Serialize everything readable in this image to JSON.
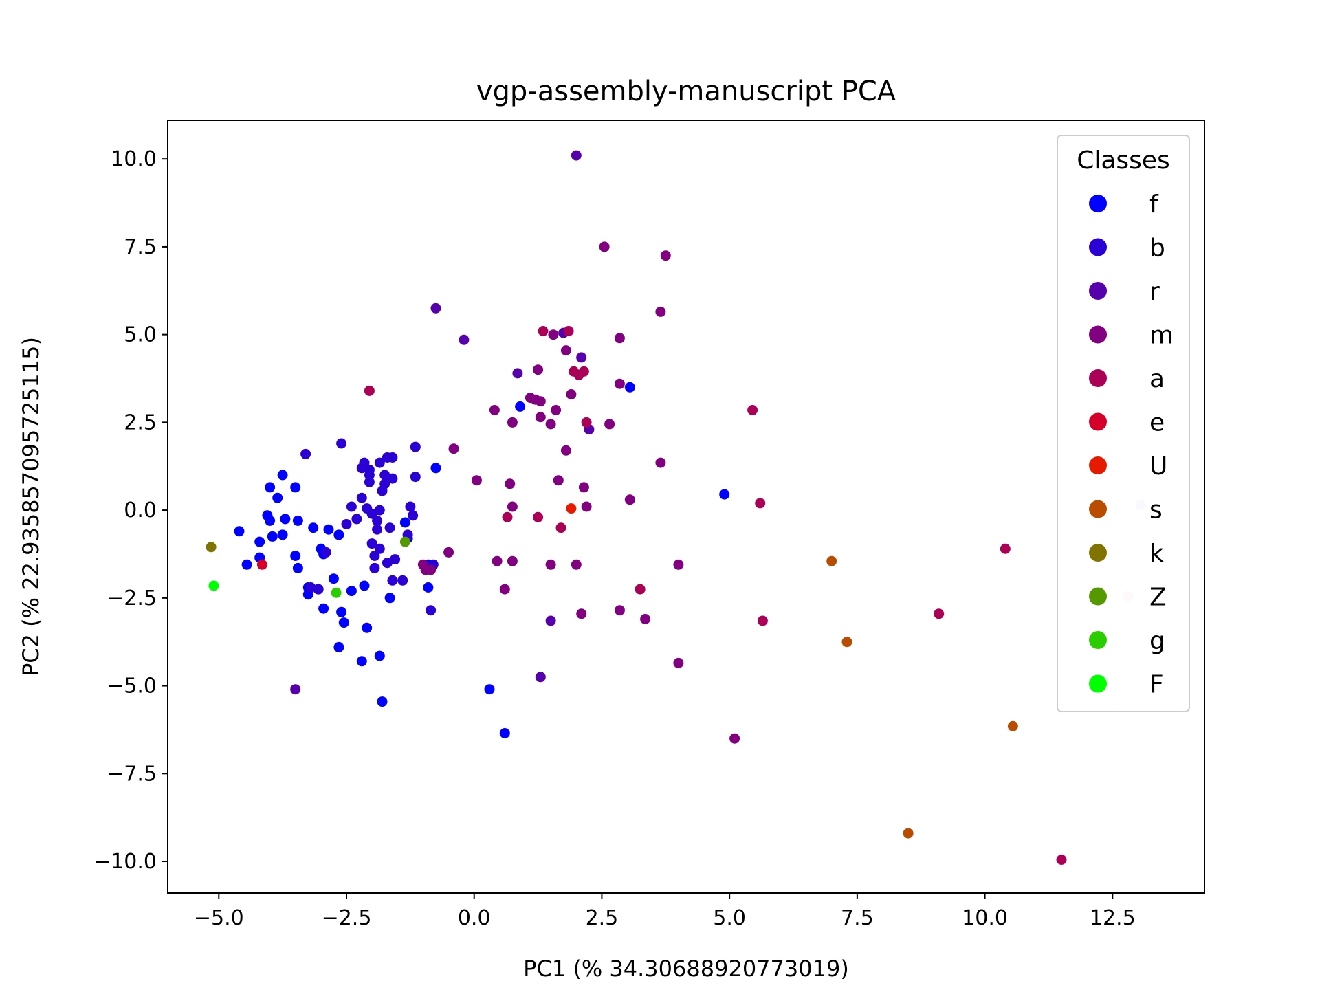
{
  "chart_data": {
    "type": "scatter",
    "title": "vgp-assembly-manuscript PCA",
    "xlabel": "PC1 (% 34.30688920773019)",
    "ylabel": "PC2 (% 22.935857095725115)",
    "xlim": [
      -6.0,
      14.3
    ],
    "ylim": [
      -10.9,
      11.1
    ],
    "xticks": [
      -5.0,
      -2.5,
      0.0,
      2.5,
      5.0,
      7.5,
      10.0,
      12.5
    ],
    "xtick_labels": [
      "−5.0",
      "−2.5",
      "0.0",
      "2.5",
      "5.0",
      "7.5",
      "10.0",
      "12.5"
    ],
    "yticks": [
      10.0,
      7.5,
      5.0,
      2.5,
      0.0,
      -2.5,
      -5.0,
      -7.5,
      -10.0
    ],
    "ytick_labels": [
      "10.0",
      "7.5",
      "5.0",
      "2.5",
      "0.0",
      "−2.5",
      "−5.0",
      "−7.5",
      "−10.0"
    ],
    "grid": false,
    "legend": {
      "title": "Classes",
      "placement": "top-right"
    },
    "series": [
      {
        "name": "f",
        "color": "#0000ff",
        "points": [
          [
            -4.6,
            -0.6
          ],
          [
            -4.45,
            -1.55
          ],
          [
            -4.2,
            -0.9
          ],
          [
            -4.2,
            -1.35
          ],
          [
            -4.05,
            -0.15
          ],
          [
            -4.0,
            0.65
          ],
          [
            -4.0,
            -0.3
          ],
          [
            -3.95,
            -0.75
          ],
          [
            -3.85,
            0.35
          ],
          [
            -3.75,
            -0.7
          ],
          [
            -3.75,
            1.0
          ],
          [
            -3.7,
            -0.25
          ],
          [
            -3.5,
            0.65
          ],
          [
            -3.5,
            -1.3
          ],
          [
            -3.45,
            -1.65
          ],
          [
            -3.45,
            -0.3
          ],
          [
            -3.25,
            -2.2
          ],
          [
            -3.25,
            -2.4
          ],
          [
            -3.15,
            -0.5
          ],
          [
            -3.05,
            -2.25
          ],
          [
            -3.0,
            -1.1
          ],
          [
            -2.95,
            -2.8
          ],
          [
            -2.95,
            -1.25
          ],
          [
            -2.85,
            -0.55
          ],
          [
            -2.75,
            -1.95
          ],
          [
            -2.65,
            -3.9
          ],
          [
            -2.65,
            -0.7
          ],
          [
            -2.6,
            -2.9
          ],
          [
            -2.55,
            -3.2
          ],
          [
            -2.4,
            -2.3
          ],
          [
            -2.2,
            -4.3
          ],
          [
            -2.15,
            -2.15
          ],
          [
            -2.1,
            -3.35
          ],
          [
            -1.85,
            -4.15
          ],
          [
            -1.8,
            -5.45
          ],
          [
            -1.65,
            -2.5
          ],
          [
            -1.35,
            -0.35
          ],
          [
            -1.3,
            -0.8
          ],
          [
            -0.9,
            -2.2
          ],
          [
            -0.9,
            -1.55
          ],
          [
            -0.75,
            1.2
          ],
          [
            0.3,
            -5.1
          ],
          [
            0.6,
            -6.35
          ],
          [
            0.9,
            2.95
          ],
          [
            3.05,
            3.5
          ],
          [
            4.9,
            0.45
          ]
        ]
      },
      {
        "name": "b",
        "color": "#2a00d5",
        "points": [
          [
            -3.3,
            1.6
          ],
          [
            -3.2,
            -2.2
          ],
          [
            -3.05,
            -2.25
          ],
          [
            -2.9,
            -1.2
          ],
          [
            -2.6,
            1.9
          ],
          [
            -2.5,
            -0.4
          ],
          [
            -2.4,
            0.1
          ],
          [
            -2.3,
            -0.25
          ],
          [
            -2.2,
            1.2
          ],
          [
            -2.2,
            0.35
          ],
          [
            -2.15,
            1.35
          ],
          [
            -2.1,
            0.05
          ],
          [
            -2.05,
            0.8
          ],
          [
            -2.05,
            1.0
          ],
          [
            -2.05,
            1.15
          ],
          [
            -2.0,
            -0.1
          ],
          [
            -2.0,
            -0.95
          ],
          [
            -1.95,
            -1.3
          ],
          [
            -1.95,
            -1.65
          ],
          [
            -1.9,
            -0.3
          ],
          [
            -1.9,
            -0.55
          ],
          [
            -1.85,
            0.0
          ],
          [
            -1.85,
            -1.1
          ],
          [
            -1.85,
            1.35
          ],
          [
            -1.8,
            0.55
          ],
          [
            -1.75,
            0.75
          ],
          [
            -1.75,
            1.0
          ],
          [
            -1.7,
            1.5
          ],
          [
            -1.7,
            -1.5
          ],
          [
            -1.65,
            -0.5
          ],
          [
            -1.6,
            0.9
          ],
          [
            -1.6,
            1.5
          ],
          [
            -1.6,
            -2.0
          ],
          [
            -1.55,
            -1.4
          ],
          [
            -1.4,
            -2.0
          ],
          [
            -1.3,
            -0.7
          ],
          [
            -1.25,
            0.1
          ],
          [
            -1.2,
            -0.15
          ],
          [
            -1.15,
            1.8
          ],
          [
            -1.15,
            0.95
          ],
          [
            -0.85,
            -2.85
          ],
          [
            -0.8,
            -1.55
          ]
        ]
      },
      {
        "name": "r",
        "color": "#5500aa",
        "points": [
          [
            -3.5,
            -5.1
          ],
          [
            -0.75,
            5.75
          ],
          [
            -0.2,
            4.85
          ],
          [
            0.85,
            3.9
          ],
          [
            1.3,
            -4.75
          ],
          [
            1.5,
            -3.15
          ],
          [
            1.75,
            5.05
          ],
          [
            2.0,
            10.1
          ],
          [
            2.1,
            4.35
          ],
          [
            2.25,
            2.3
          ]
        ]
      },
      {
        "name": "m",
        "color": "#800080",
        "points": [
          [
            -1.0,
            -1.55
          ],
          [
            -0.95,
            -1.7
          ],
          [
            -0.85,
            -1.7
          ],
          [
            -0.5,
            -1.2
          ],
          [
            -0.4,
            1.75
          ],
          [
            0.05,
            0.85
          ],
          [
            0.4,
            2.85
          ],
          [
            0.45,
            -1.45
          ],
          [
            0.6,
            -2.25
          ],
          [
            0.7,
            0.75
          ],
          [
            0.75,
            -1.45
          ],
          [
            0.75,
            0.1
          ],
          [
            0.75,
            2.5
          ],
          [
            1.1,
            3.2
          ],
          [
            1.2,
            3.15
          ],
          [
            1.25,
            4.0
          ],
          [
            1.3,
            2.65
          ],
          [
            1.3,
            3.1
          ],
          [
            1.5,
            -1.55
          ],
          [
            1.5,
            2.45
          ],
          [
            1.55,
            5.0
          ],
          [
            1.6,
            2.85
          ],
          [
            1.65,
            0.85
          ],
          [
            1.8,
            4.55
          ],
          [
            1.8,
            1.7
          ],
          [
            1.9,
            3.3
          ],
          [
            2.0,
            -1.55
          ],
          [
            2.1,
            -2.95
          ],
          [
            2.15,
            0.65
          ],
          [
            2.2,
            0.1
          ],
          [
            2.55,
            7.5
          ],
          [
            2.65,
            2.45
          ],
          [
            2.85,
            3.6
          ],
          [
            2.85,
            4.9
          ],
          [
            2.85,
            -2.85
          ],
          [
            3.05,
            0.3
          ],
          [
            3.35,
            -3.1
          ],
          [
            3.65,
            5.65
          ],
          [
            3.65,
            1.35
          ],
          [
            3.75,
            7.25
          ],
          [
            4.0,
            -1.55
          ],
          [
            4.0,
            -4.35
          ],
          [
            5.1,
            -6.5
          ]
        ]
      },
      {
        "name": "a",
        "color": "#aa0055",
        "points": [
          [
            -2.05,
            3.4
          ],
          [
            0.65,
            -0.2
          ],
          [
            1.25,
            -0.2
          ],
          [
            1.35,
            5.1
          ],
          [
            1.7,
            -0.5
          ],
          [
            1.85,
            5.1
          ],
          [
            1.95,
            3.95
          ],
          [
            2.05,
            3.85
          ],
          [
            2.15,
            3.95
          ],
          [
            2.2,
            2.5
          ],
          [
            3.25,
            -2.25
          ],
          [
            5.45,
            2.85
          ],
          [
            5.6,
            0.2
          ],
          [
            5.65,
            -3.15
          ],
          [
            9.1,
            -2.95
          ],
          [
            10.4,
            -1.1
          ],
          [
            11.5,
            -9.95
          ]
        ]
      },
      {
        "name": "e",
        "color": "#d5002a",
        "points": [
          [
            -4.15,
            -1.55
          ]
        ]
      },
      {
        "name": "U",
        "color": "#e61a00",
        "points": [
          [
            1.9,
            0.05
          ]
        ]
      },
      {
        "name": "s",
        "color": "#b84d00",
        "points": [
          [
            7.0,
            -1.45
          ],
          [
            7.3,
            -3.75
          ],
          [
            8.5,
            -9.2
          ],
          [
            10.55,
            -6.15
          ]
        ]
      },
      {
        "name": "k",
        "color": "#807300",
        "points": [
          [
            -5.15,
            -1.05
          ]
        ]
      },
      {
        "name": "Z",
        "color": "#559900",
        "points": [
          [
            -1.35,
            -0.9
          ]
        ]
      },
      {
        "name": "g",
        "color": "#2bcc00",
        "points": [
          [
            -2.7,
            -2.35
          ]
        ]
      },
      {
        "name": "F",
        "color": "#00ff00",
        "points": [
          [
            -5.1,
            -2.15
          ]
        ]
      },
      {
        "color": "#ccccff",
        "points": [
          [
            13.05,
            0.15
          ]
        ]
      },
      {
        "color": "#ffccdd",
        "points": [
          [
            12.8,
            -2.45
          ]
        ]
      }
    ]
  }
}
